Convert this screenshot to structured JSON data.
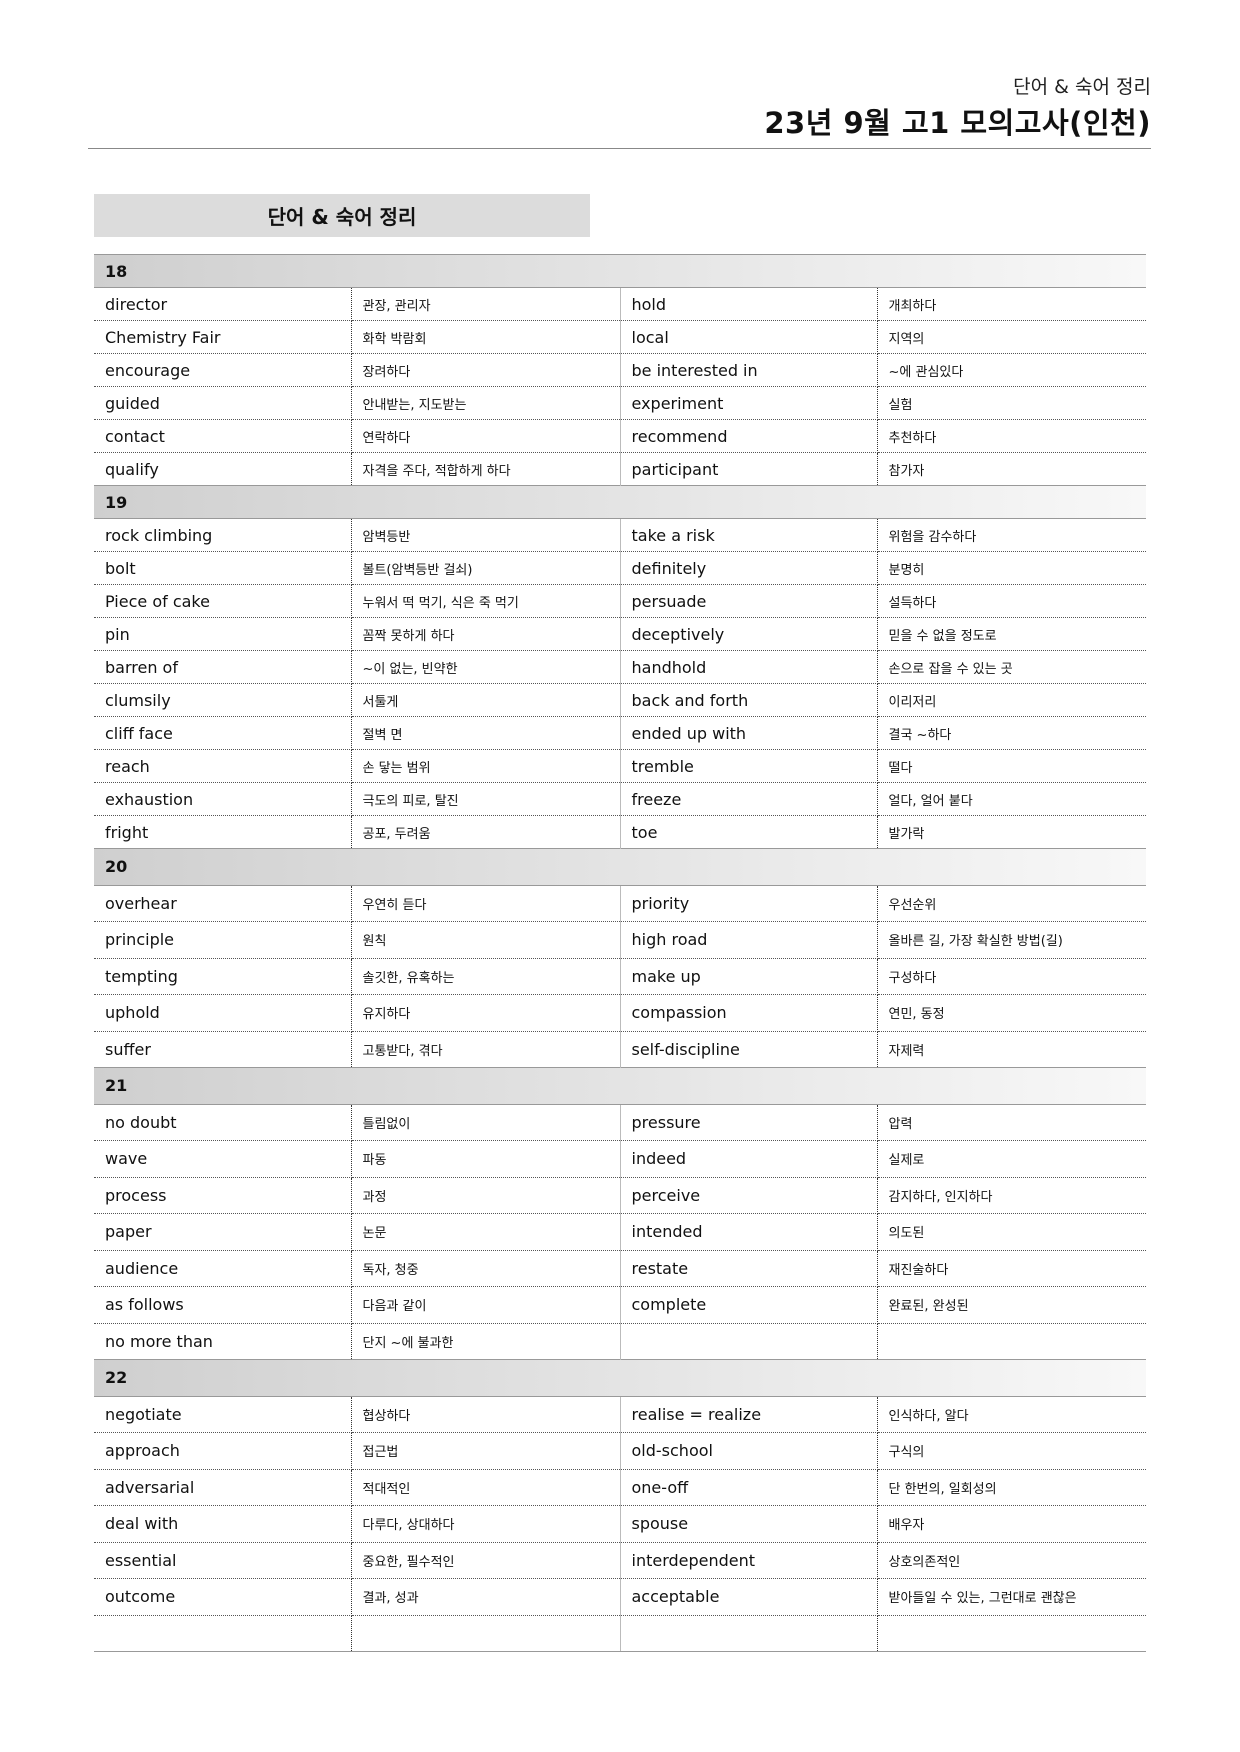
{
  "header": {
    "subtitle": "단어 & 숙어 정리",
    "title": "23년 9월 고1 모의고사(인천)"
  },
  "box_title": "단어 & 숙어 정리",
  "sections": [
    {
      "number": "18",
      "rows": [
        [
          "director",
          "관장, 관리자",
          "hold",
          "개최하다"
        ],
        [
          "Chemistry Fair",
          "화학 박람회",
          "local",
          "지역의"
        ],
        [
          "encourage",
          "장려하다",
          "be interested in",
          "~에 관심있다"
        ],
        [
          "guided",
          "안내받는, 지도받는",
          "experiment",
          "실험"
        ],
        [
          "contact",
          "연락하다",
          "recommend",
          "추천하다"
        ],
        [
          "qualify",
          "자격을 주다, 적합하게 하다",
          "participant",
          "참가자"
        ]
      ]
    },
    {
      "number": "19",
      "rows": [
        [
          "rock climbing",
          "암벽등반",
          "take a risk",
          "위험을 감수하다"
        ],
        [
          "bolt",
          "볼트(암벽등반 걸쇠)",
          "definitely",
          "분명히"
        ],
        [
          "Piece of cake",
          "누워서 떡 먹기, 식은 죽 먹기",
          "persuade",
          "설득하다"
        ],
        [
          "pin",
          "꼼짝 못하게 하다",
          "deceptively",
          "믿을 수 없을 정도로"
        ],
        [
          "barren of",
          "~이 없는, 빈약한",
          "handhold",
          "손으로 잡을 수 있는 곳"
        ],
        [
          "clumsily",
          "서툴게",
          "back and forth",
          "이리저리"
        ],
        [
          "cliff face",
          "절벽 면",
          "ended up with",
          "결국 ~하다"
        ],
        [
          "reach",
          "손 닿는 범위",
          "tremble",
          "떨다"
        ],
        [
          "exhaustion",
          "극도의 피로, 탈진",
          "freeze",
          "얼다, 얼어 붙다"
        ],
        [
          "fright",
          "공포, 두려움",
          "toe",
          "발가락"
        ]
      ]
    },
    {
      "number": "20",
      "rows": [
        [
          "overhear",
          "우연히 듣다",
          "priority",
          "우선순위"
        ],
        [
          "principle",
          "원칙",
          "high road",
          "올바른 길, 가장 확실한 방법(길)"
        ],
        [
          "tempting",
          "솔깃한, 유혹하는",
          "make up",
          "구성하다"
        ],
        [
          "uphold",
          "유지하다",
          "compassion",
          "연민, 동정"
        ],
        [
          "suffer",
          "고통받다, 겪다",
          "self-discipline",
          "자제력"
        ]
      ]
    },
    {
      "number": "21",
      "rows": [
        [
          "no doubt",
          "틀림없이",
          "pressure",
          "압력"
        ],
        [
          "wave",
          "파동",
          "indeed",
          "실제로"
        ],
        [
          "process",
          "과정",
          "perceive",
          "감지하다, 인지하다"
        ],
        [
          "paper",
          "논문",
          "intended",
          "의도된"
        ],
        [
          "audience",
          "독자, 청중",
          "restate",
          "재진술하다"
        ],
        [
          "as follows",
          "다음과 같이",
          "complete",
          "완료된, 완성된"
        ],
        [
          "no more than",
          "단지 ~에 불과한",
          "",
          ""
        ]
      ]
    },
    {
      "number": "22",
      "rows": [
        [
          "negotiate",
          "협상하다",
          "realise = realize",
          "인식하다, 알다"
        ],
        [
          "approach",
          "접근법",
          "old-school",
          "구식의"
        ],
        [
          "adversarial",
          "적대적인",
          "one-off",
          "단 한번의, 일회성의"
        ],
        [
          "deal with",
          "다루다, 상대하다",
          "spouse",
          "배우자"
        ],
        [
          "essential",
          "중요한, 필수적인",
          "interdependent",
          "상호의존적인"
        ],
        [
          "outcome",
          "결과, 성과",
          "acceptable",
          "받아들일 수 있는, 그런대로 괜찮은"
        ],
        [
          "",
          "",
          "",
          ""
        ]
      ]
    }
  ]
}
